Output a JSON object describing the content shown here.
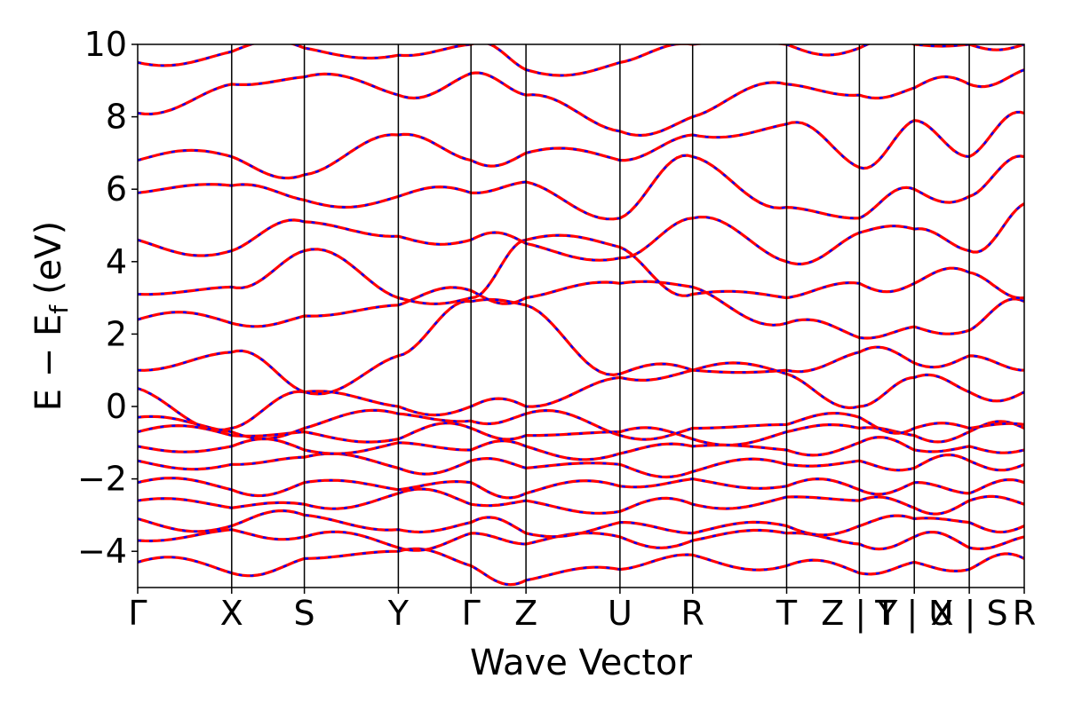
{
  "chart_data": {
    "type": "line",
    "title": "",
    "xlabel": "Wave Vector",
    "ylabel": "E − E",
    "ylabel_subscript": "f",
    "ylabel_unit": "(eV)",
    "ylim": [
      -5,
      10
    ],
    "yticks": [
      {
        "value": 10,
        "label": "10"
      },
      {
        "value": 8,
        "label": "8"
      },
      {
        "value": 6,
        "label": "6"
      },
      {
        "value": 4,
        "label": "4"
      },
      {
        "value": 2,
        "label": "2"
      },
      {
        "value": 0,
        "label": "0"
      },
      {
        "value": -2,
        "label": "−2"
      },
      {
        "value": -4,
        "label": "−4"
      }
    ],
    "xlim": [
      0,
      1
    ],
    "high_symmetry_points": [
      {
        "x": 0.0,
        "label": "Γ"
      },
      {
        "x": 0.106,
        "label": "X"
      },
      {
        "x": 0.188,
        "label": "S"
      },
      {
        "x": 0.294,
        "label": "Y"
      },
      {
        "x": 0.376,
        "label": "Γ"
      },
      {
        "x": 0.438,
        "label": "Z"
      },
      {
        "x": 0.544,
        "label": "U"
      },
      {
        "x": 0.626,
        "label": "R"
      },
      {
        "x": 0.732,
        "label": "T"
      },
      {
        "x": 0.814,
        "label": "Z | Y"
      },
      {
        "x": 0.876,
        "label": "T | U"
      },
      {
        "x": 0.938,
        "label": "X | S"
      },
      {
        "x": 1.0,
        "label": "R"
      }
    ],
    "series_colors": {
      "band_a": "#ff0000",
      "band_b": "#0000ff"
    },
    "series": [
      {
        "name": "",
        "color": "#ff0000",
        "style": "solid"
      },
      {
        "name": "",
        "color": "#0000ff",
        "style": "dashed"
      }
    ],
    "bands": [
      [
        -4.3,
        -4.6,
        -4.2,
        -4.0,
        -4.4,
        -4.8,
        -4.5,
        -4.1,
        -4.4,
        -4.6,
        -4.3,
        -4.5,
        -4.2
      ],
      [
        -3.7,
        -3.4,
        -3.6,
        -3.9,
        -3.5,
        -3.8,
        -3.6,
        -3.7,
        -3.5,
        -3.8,
        -3.6,
        -3.9,
        -3.6
      ],
      [
        -3.1,
        -3.3,
        -3.0,
        -3.4,
        -3.2,
        -3.5,
        -3.2,
        -3.5,
        -3.3,
        -3.3,
        -3.1,
        -3.2,
        -3.3
      ],
      [
        -2.6,
        -2.8,
        -2.7,
        -2.4,
        -2.7,
        -2.6,
        -2.9,
        -2.7,
        -2.5,
        -2.6,
        -2.8,
        -2.6,
        -2.7
      ],
      [
        -2.1,
        -2.3,
        -2.1,
        -2.3,
        -2.1,
        -2.4,
        -2.2,
        -2.0,
        -2.2,
        -2.3,
        -2.1,
        -2.4,
        -2.1
      ],
      [
        -1.5,
        -1.6,
        -1.4,
        -1.7,
        -1.5,
        -1.7,
        -1.6,
        -1.8,
        -1.6,
        -1.5,
        -1.7,
        -1.5,
        -1.6
      ],
      [
        -1.1,
        -1.1,
        -1.2,
        -1.0,
        -1.2,
        -1.1,
        -1.3,
        -1.1,
        -1.2,
        -1.0,
        -1.2,
        -1.1,
        -1.2
      ],
      [
        -0.7,
        -0.8,
        -0.7,
        -0.9,
        -0.6,
        -0.8,
        -0.7,
        -0.9,
        -0.7,
        -0.6,
        -0.8,
        -0.7,
        -0.6
      ],
      [
        -0.3,
        -0.7,
        -0.6,
        -0.2,
        -0.4,
        -0.2,
        -0.8,
        -0.6,
        -0.5,
        -0.3,
        -0.6,
        -0.6,
        -0.5
      ],
      [
        0.5,
        -0.6,
        0.4,
        0.0,
        0.0,
        0.0,
        0.8,
        1.0,
        0.9,
        0.0,
        0.8,
        0.4,
        0.4
      ],
      [
        1.0,
        1.5,
        0.4,
        1.4,
        2.9,
        2.8,
        0.9,
        1.0,
        1.0,
        1.5,
        1.2,
        1.4,
        1.0
      ],
      [
        2.4,
        2.3,
        2.5,
        2.8,
        3.2,
        3.0,
        3.4,
        3.3,
        2.3,
        1.9,
        2.2,
        2.1,
        2.9
      ],
      [
        3.1,
        3.3,
        4.3,
        3.0,
        3.0,
        4.6,
        4.4,
        3.1,
        3.0,
        3.4,
        3.4,
        3.7,
        3.0
      ],
      [
        4.6,
        4.3,
        5.1,
        4.7,
        4.6,
        4.5,
        4.1,
        5.2,
        4.0,
        4.8,
        4.9,
        4.3,
        5.6
      ],
      [
        5.9,
        6.1,
        5.7,
        5.8,
        5.9,
        6.2,
        5.2,
        6.9,
        5.5,
        5.2,
        6.0,
        5.8,
        6.9
      ],
      [
        6.8,
        6.9,
        6.4,
        7.5,
        6.8,
        7.0,
        6.8,
        7.5,
        7.8,
        6.6,
        7.9,
        6.9,
        8.1
      ],
      [
        8.1,
        8.9,
        9.1,
        8.6,
        9.2,
        8.6,
        7.6,
        8.0,
        8.9,
        8.6,
        8.8,
        8.9,
        9.3
      ],
      [
        9.5,
        9.8,
        9.9,
        9.7,
        10.0,
        9.3,
        9.5,
        10.0,
        10.0,
        9.9,
        10.0,
        10.0,
        10.0
      ]
    ]
  }
}
